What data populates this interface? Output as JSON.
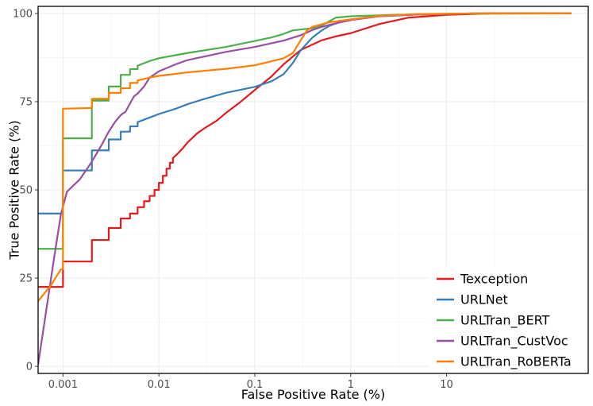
{
  "chart_data": {
    "type": "line",
    "title": "",
    "xlabel": "False Positive Rate (%)",
    "ylabel": "True Positive Rate (%)",
    "xscale": "log",
    "xlim": [
      0.00055,
      300
    ],
    "ylim": [
      -2,
      102
    ],
    "x_ticks": [
      0.001,
      0.01,
      0.1,
      1,
      10
    ],
    "x_tick_labels": [
      "0.001",
      "0.01",
      "0.1",
      "1",
      "10"
    ],
    "y_ticks": [
      0,
      25,
      50,
      75,
      100
    ],
    "y_tick_labels": [
      "0",
      "25",
      "50",
      "75",
      "100"
    ],
    "grid": true,
    "legend_position": "bottom-right",
    "series": [
      {
        "name": "Texception",
        "color": "#e41a1c",
        "points": [
          [
            0.00055,
            22.5
          ],
          [
            0.001,
            22.5
          ],
          [
            0.001,
            29.7
          ],
          [
            0.002,
            29.7
          ],
          [
            0.002,
            35.8
          ],
          [
            0.003,
            35.8
          ],
          [
            0.003,
            39.2
          ],
          [
            0.004,
            39.2
          ],
          [
            0.004,
            41.9
          ],
          [
            0.005,
            41.9
          ],
          [
            0.005,
            43.3
          ],
          [
            0.006,
            43.3
          ],
          [
            0.006,
            45.1
          ],
          [
            0.007,
            45.1
          ],
          [
            0.007,
            46.8
          ],
          [
            0.008,
            46.8
          ],
          [
            0.008,
            48.3
          ],
          [
            0.009,
            48.3
          ],
          [
            0.009,
            50
          ],
          [
            0.01,
            50
          ],
          [
            0.01,
            52
          ],
          [
            0.011,
            52
          ],
          [
            0.011,
            54
          ],
          [
            0.012,
            54
          ],
          [
            0.012,
            56
          ],
          [
            0.013,
            56
          ],
          [
            0.013,
            57.7
          ],
          [
            0.014,
            57.7
          ],
          [
            0.014,
            59
          ],
          [
            0.016,
            60.5
          ],
          [
            0.018,
            62
          ],
          [
            0.02,
            63.5
          ],
          [
            0.025,
            66
          ],
          [
            0.03,
            67.5
          ],
          [
            0.04,
            69.6
          ],
          [
            0.05,
            71.8
          ],
          [
            0.07,
            74.8
          ],
          [
            0.1,
            78.3
          ],
          [
            0.15,
            82.2
          ],
          [
            0.2,
            85.6
          ],
          [
            0.3,
            89.6
          ],
          [
            0.5,
            92.4
          ],
          [
            0.7,
            93.5
          ],
          [
            1,
            94.4
          ],
          [
            2,
            97
          ],
          [
            4,
            98.8
          ],
          [
            10,
            99.6
          ],
          [
            30,
            100
          ],
          [
            200,
            100
          ]
        ]
      },
      {
        "name": "URLNet",
        "color": "#377eb8",
        "points": [
          [
            0.00055,
            43.3
          ],
          [
            0.001,
            43.3
          ],
          [
            0.001,
            55.5
          ],
          [
            0.002,
            55.5
          ],
          [
            0.002,
            61.2
          ],
          [
            0.003,
            61.2
          ],
          [
            0.003,
            64.3
          ],
          [
            0.004,
            64.3
          ],
          [
            0.004,
            66.5
          ],
          [
            0.005,
            66.5
          ],
          [
            0.005,
            68
          ],
          [
            0.006,
            68
          ],
          [
            0.006,
            69.2
          ],
          [
            0.008,
            70.5
          ],
          [
            0.01,
            71.5
          ],
          [
            0.015,
            73
          ],
          [
            0.02,
            74.3
          ],
          [
            0.03,
            75.8
          ],
          [
            0.05,
            77.5
          ],
          [
            0.1,
            79.2
          ],
          [
            0.15,
            80.8
          ],
          [
            0.2,
            82.8
          ],
          [
            0.25,
            86
          ],
          [
            0.3,
            89.5
          ],
          [
            0.4,
            93.2
          ],
          [
            0.5,
            95.2
          ],
          [
            0.6,
            96.5
          ],
          [
            0.8,
            97.7
          ],
          [
            1,
            98.3
          ],
          [
            2,
            99.2
          ],
          [
            5,
            99.7
          ],
          [
            20,
            100
          ],
          [
            200,
            100
          ]
        ]
      },
      {
        "name": "URLTran_BERT",
        "color": "#4daf4a",
        "points": [
          [
            0.00055,
            33.3
          ],
          [
            0.001,
            33.3
          ],
          [
            0.001,
            64.6
          ],
          [
            0.002,
            64.6
          ],
          [
            0.002,
            75.3
          ],
          [
            0.003,
            75.3
          ],
          [
            0.003,
            79.3
          ],
          [
            0.004,
            79.3
          ],
          [
            0.004,
            82.6
          ],
          [
            0.005,
            82.6
          ],
          [
            0.005,
            84.2
          ],
          [
            0.006,
            84.2
          ],
          [
            0.006,
            85.2
          ],
          [
            0.008,
            86.5
          ],
          [
            0.01,
            87.3
          ],
          [
            0.02,
            88.8
          ],
          [
            0.05,
            90.5
          ],
          [
            0.1,
            92.2
          ],
          [
            0.15,
            93.2
          ],
          [
            0.2,
            94.2
          ],
          [
            0.25,
            95.2
          ],
          [
            0.4,
            95.8
          ],
          [
            0.5,
            96.6
          ],
          [
            0.7,
            98.8
          ],
          [
            1,
            99.2
          ],
          [
            3,
            99.6
          ],
          [
            10,
            99.9
          ],
          [
            200,
            100
          ]
        ]
      },
      {
        "name": "URLTran_CustVoc",
        "color": "#984ea3",
        "points": [
          [
            0.00055,
            0.5
          ],
          [
            0.0008,
            30
          ],
          [
            0.00095,
            43
          ],
          [
            0.0011,
            49.5
          ],
          [
            0.0015,
            53
          ],
          [
            0.002,
            58
          ],
          [
            0.0025,
            62.5
          ],
          [
            0.003,
            66.5
          ],
          [
            0.0035,
            69.3
          ],
          [
            0.004,
            71.2
          ],
          [
            0.0045,
            72.2
          ],
          [
            0.005,
            74.5
          ],
          [
            0.0055,
            76.5
          ],
          [
            0.006,
            77.3
          ],
          [
            0.007,
            79.3
          ],
          [
            0.008,
            81.8
          ],
          [
            0.01,
            83.6
          ],
          [
            0.015,
            85.6
          ],
          [
            0.02,
            86.8
          ],
          [
            0.03,
            87.8
          ],
          [
            0.05,
            89.1
          ],
          [
            0.1,
            90.5
          ],
          [
            0.2,
            92.3
          ],
          [
            0.3,
            93.8
          ],
          [
            0.4,
            95.3
          ],
          [
            0.5,
            96.2
          ],
          [
            0.7,
            97.2
          ],
          [
            1,
            98.1
          ],
          [
            2,
            99.2
          ],
          [
            5,
            99.7
          ],
          [
            20,
            100
          ],
          [
            200,
            100
          ]
        ]
      },
      {
        "name": "URLTran_RoBERTa",
        "color": "#ff7f00",
        "points": [
          [
            0.00055,
            18.5
          ],
          [
            0.00075,
            23
          ],
          [
            0.00095,
            27.5
          ],
          [
            0.001,
            27.5
          ],
          [
            0.001,
            73
          ],
          [
            0.002,
            73.2
          ],
          [
            0.002,
            75.8
          ],
          [
            0.003,
            75.8
          ],
          [
            0.003,
            77.5
          ],
          [
            0.004,
            77.5
          ],
          [
            0.004,
            78.8
          ],
          [
            0.005,
            78.8
          ],
          [
            0.005,
            80.3
          ],
          [
            0.006,
            80.3
          ],
          [
            0.006,
            81
          ],
          [
            0.008,
            81.8
          ],
          [
            0.01,
            82.3
          ],
          [
            0.02,
            83.3
          ],
          [
            0.05,
            84.3
          ],
          [
            0.1,
            85.3
          ],
          [
            0.2,
            87.3
          ],
          [
            0.25,
            88.8
          ],
          [
            0.3,
            92.3
          ],
          [
            0.35,
            95.2
          ],
          [
            0.4,
            96.2
          ],
          [
            0.6,
            97.5
          ],
          [
            1,
            98.3
          ],
          [
            2,
            99.3
          ],
          [
            5,
            99.8
          ],
          [
            20,
            100
          ],
          [
            200,
            100
          ]
        ]
      }
    ]
  }
}
